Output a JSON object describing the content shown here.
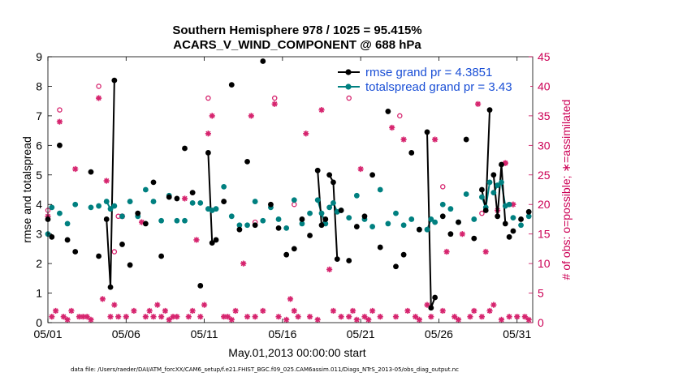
{
  "chart_data": {
    "type": "scatter",
    "title_line1": "Southern Hemisphere 978 / 1025 = 95.415%",
    "title_line2": "ACARS_V_WIND_COMPONENT @ 688 hPa",
    "xlabel": "May.01,2013 00:00:00 start",
    "ylabel_left": "rmse and totalspread",
    "ylabel_right": "# of obs: o=possible; ∗=assimilated",
    "xlim": [
      0,
      31
    ],
    "ylim_left": [
      0,
      9
    ],
    "ylim_right": [
      0,
      45
    ],
    "x_ticks": [
      0,
      5,
      10,
      15,
      20,
      25,
      30
    ],
    "x_tick_labels": [
      "05/01",
      "05/06",
      "05/11",
      "05/16",
      "05/21",
      "05/26",
      "05/31"
    ],
    "y_ticks_left": [
      0,
      1,
      2,
      3,
      4,
      5,
      6,
      7,
      8,
      9
    ],
    "y_tick_labels_left": [
      "0",
      "1",
      "2",
      "3",
      "4",
      "5",
      "6",
      "7",
      "8",
      "9"
    ],
    "y_ticks_right": [
      0,
      5,
      10,
      15,
      20,
      25,
      30,
      35,
      40,
      45
    ],
    "y_tick_labels_right": [
      "0",
      "5",
      "10",
      "15",
      "20",
      "25",
      "30",
      "35",
      "40",
      "45"
    ],
    "colors": {
      "rmse": "#000000",
      "spread": "#008080",
      "obs": "#d6246e",
      "legend_text": "#1a4fd6",
      "right_axis": "#cc0055"
    },
    "legend": [
      {
        "name": "rmse grand pr = 4.3851",
        "series": "rmse"
      },
      {
        "name": "totalspread grand pr = 3.43",
        "series": "spread"
      }
    ],
    "rmse_points": [
      [
        0.0,
        3.5
      ],
      [
        0.25,
        2.9
      ],
      [
        0.75,
        6.0
      ],
      [
        1.25,
        2.8
      ],
      [
        1.75,
        2.4
      ],
      [
        2.75,
        5.1
      ],
      [
        3.25,
        2.25
      ],
      [
        3.75,
        3.5
      ],
      [
        4.0,
        1.2
      ],
      [
        4.25,
        8.2
      ],
      [
        4.75,
        2.65
      ],
      [
        5.25,
        1.95
      ],
      [
        5.75,
        3.7
      ],
      [
        6.25,
        3.35
      ],
      [
        6.75,
        4.75
      ],
      [
        7.25,
        2.25
      ],
      [
        7.75,
        4.25
      ],
      [
        8.25,
        4.2
      ],
      [
        8.75,
        5.9
      ],
      [
        9.25,
        4.4
      ],
      [
        9.75,
        1.25
      ],
      [
        10.25,
        5.75
      ],
      [
        10.5,
        2.7
      ],
      [
        10.75,
        2.8
      ],
      [
        11.25,
        4.1
      ],
      [
        11.75,
        8.05
      ],
      [
        12.25,
        3.15
      ],
      [
        12.75,
        5.45
      ],
      [
        13.25,
        3.3
      ],
      [
        13.75,
        8.85
      ],
      [
        14.25,
        4.0
      ],
      [
        14.75,
        3.2
      ],
      [
        15.25,
        2.3
      ],
      [
        15.75,
        2.5
      ],
      [
        16.25,
        3.5
      ],
      [
        16.75,
        2.95
      ],
      [
        17.25,
        5.15
      ],
      [
        17.5,
        3.3
      ],
      [
        17.75,
        3.5
      ],
      [
        18.0,
        5.0
      ],
      [
        18.25,
        4.75
      ],
      [
        18.5,
        2.15
      ],
      [
        18.75,
        3.8
      ],
      [
        19.25,
        2.1
      ],
      [
        19.75,
        3.25
      ],
      [
        20.25,
        3.6
      ],
      [
        20.75,
        5.0
      ],
      [
        21.25,
        2.55
      ],
      [
        21.75,
        7.15
      ],
      [
        22.25,
        1.9
      ],
      [
        22.75,
        2.3
      ],
      [
        23.25,
        5.75
      ],
      [
        23.75,
        3.15
      ],
      [
        24.25,
        6.45
      ],
      [
        24.5,
        0.5
      ],
      [
        24.75,
        0.85
      ],
      [
        25.25,
        3.6
      ],
      [
        25.75,
        3.0
      ],
      [
        26.25,
        3.4
      ],
      [
        26.75,
        6.2
      ],
      [
        27.25,
        2.85
      ],
      [
        27.75,
        4.5
      ],
      [
        28.0,
        3.8
      ],
      [
        28.25,
        7.2
      ],
      [
        28.5,
        5.0
      ],
      [
        28.75,
        3.6
      ],
      [
        29.0,
        5.35
      ],
      [
        29.25,
        3.35
      ],
      [
        29.5,
        2.9
      ],
      [
        29.75,
        3.1
      ],
      [
        30.25,
        3.5
      ],
      [
        30.75,
        3.75
      ]
    ],
    "rmse_connected_groups": [
      [
        [
          3.75,
          3.5
        ],
        [
          4.0,
          1.2
        ],
        [
          4.25,
          8.2
        ]
      ],
      [
        [
          10.25,
          5.75
        ],
        [
          10.5,
          2.7
        ],
        [
          10.75,
          2.8
        ]
      ],
      [
        [
          17.25,
          5.15
        ],
        [
          17.5,
          3.3
        ],
        [
          17.75,
          3.5
        ]
      ],
      [
        [
          18.0,
          5.0
        ],
        [
          18.25,
          4.75
        ],
        [
          18.5,
          2.15
        ]
      ],
      [
        [
          24.25,
          6.45
        ],
        [
          24.5,
          0.5
        ],
        [
          24.75,
          0.85
        ]
      ],
      [
        [
          27.75,
          4.5
        ],
        [
          28.0,
          3.8
        ],
        [
          28.25,
          7.2
        ]
      ],
      [
        [
          28.5,
          5.0
        ],
        [
          28.75,
          3.6
        ],
        [
          29.0,
          5.35
        ],
        [
          29.25,
          3.35
        ]
      ]
    ],
    "spread_points": [
      [
        0.0,
        3.0
      ],
      [
        0.25,
        3.9
      ],
      [
        0.75,
        3.7
      ],
      [
        1.25,
        3.35
      ],
      [
        1.75,
        4.0
      ],
      [
        2.75,
        3.9
      ],
      [
        3.25,
        3.95
      ],
      [
        3.75,
        4.1
      ],
      [
        4.0,
        3.85
      ],
      [
        4.25,
        3.95
      ],
      [
        4.75,
        3.6
      ],
      [
        5.25,
        4.1
      ],
      [
        5.75,
        3.6
      ],
      [
        6.25,
        4.5
      ],
      [
        6.75,
        4.1
      ],
      [
        7.25,
        3.45
      ],
      [
        7.75,
        4.3
      ],
      [
        8.25,
        3.45
      ],
      [
        8.75,
        3.45
      ],
      [
        9.25,
        4.05
      ],
      [
        9.75,
        4.05
      ],
      [
        10.25,
        3.85
      ],
      [
        10.5,
        3.8
      ],
      [
        10.75,
        3.85
      ],
      [
        11.25,
        4.6
      ],
      [
        11.75,
        3.6
      ],
      [
        12.25,
        3.3
      ],
      [
        12.75,
        3.3
      ],
      [
        13.25,
        4.1
      ],
      [
        13.75,
        3.45
      ],
      [
        14.25,
        3.9
      ],
      [
        14.75,
        3.5
      ],
      [
        15.25,
        3.2
      ],
      [
        15.75,
        4.15
      ],
      [
        16.25,
        3.35
      ],
      [
        16.75,
        3.7
      ],
      [
        17.25,
        4.15
      ],
      [
        17.5,
        3.7
      ],
      [
        17.75,
        3.35
      ],
      [
        18.0,
        3.9
      ],
      [
        18.25,
        4.05
      ],
      [
        18.5,
        3.75
      ],
      [
        18.75,
        3.8
      ],
      [
        19.25,
        3.55
      ],
      [
        19.75,
        4.3
      ],
      [
        20.25,
        3.5
      ],
      [
        20.75,
        3.25
      ],
      [
        21.25,
        4.5
      ],
      [
        21.75,
        3.35
      ],
      [
        22.25,
        3.7
      ],
      [
        22.75,
        3.3
      ],
      [
        23.25,
        3.5
      ],
      [
        23.75,
        3.15
      ],
      [
        24.25,
        3.15
      ],
      [
        24.5,
        3.5
      ],
      [
        24.75,
        3.4
      ],
      [
        25.25,
        4.0
      ],
      [
        25.75,
        3.85
      ],
      [
        26.25,
        3.4
      ],
      [
        26.75,
        4.35
      ],
      [
        27.25,
        3.5
      ],
      [
        27.75,
        4.25
      ],
      [
        28.0,
        3.9
      ],
      [
        28.25,
        4.75
      ],
      [
        28.5,
        4.4
      ],
      [
        28.75,
        4.65
      ],
      [
        29.0,
        4.75
      ],
      [
        29.25,
        3.95
      ],
      [
        29.5,
        4.0
      ],
      [
        29.75,
        3.55
      ],
      [
        30.25,
        3.3
      ],
      [
        30.75,
        3.6
      ]
    ],
    "spread_connected_groups": [
      [
        [
          3.75,
          4.1
        ],
        [
          4.0,
          3.85
        ],
        [
          4.25,
          3.95
        ]
      ],
      [
        [
          10.25,
          3.85
        ],
        [
          10.5,
          3.8
        ],
        [
          10.75,
          3.85
        ]
      ],
      [
        [
          17.25,
          4.15
        ],
        [
          17.5,
          3.7
        ],
        [
          17.75,
          3.35
        ]
      ],
      [
        [
          18.0,
          3.9
        ],
        [
          18.25,
          4.05
        ],
        [
          18.5,
          3.75
        ]
      ],
      [
        [
          24.25,
          3.15
        ],
        [
          24.5,
          3.5
        ],
        [
          24.75,
          3.4
        ]
      ],
      [
        [
          27.75,
          4.25
        ],
        [
          28.0,
          3.9
        ],
        [
          28.25,
          4.75
        ]
      ],
      [
        [
          28.5,
          4.4
        ],
        [
          28.75,
          4.65
        ],
        [
          29.0,
          4.75
        ],
        [
          29.25,
          3.95
        ]
      ]
    ],
    "obs_possible": [
      [
        0.0,
        19.0
      ],
      [
        0.75,
        36.0
      ],
      [
        3.25,
        40.0
      ],
      [
        4.25,
        12.0
      ],
      [
        4.5,
        18.0
      ],
      [
        9.25,
        22.0
      ],
      [
        10.25,
        38.0
      ],
      [
        13.25,
        17.0
      ],
      [
        14.5,
        38.0
      ],
      [
        15.75,
        20.0
      ],
      [
        19.25,
        38.0
      ],
      [
        22.5,
        35.0
      ],
      [
        25.25,
        23.0
      ],
      [
        27.25,
        41.0
      ],
      [
        27.75,
        18.5
      ],
      [
        29.25,
        27.0
      ]
    ],
    "obs_assimilated": [
      [
        0.0,
        18.0
      ],
      [
        0.25,
        1.0
      ],
      [
        0.5,
        2.0
      ],
      [
        0.75,
        34.0
      ],
      [
        1.0,
        1.0
      ],
      [
        1.25,
        0.5
      ],
      [
        1.5,
        2.0
      ],
      [
        1.75,
        26.0
      ],
      [
        2.0,
        1.0
      ],
      [
        2.25,
        1.0
      ],
      [
        2.5,
        1.0
      ],
      [
        2.75,
        0.5
      ],
      [
        3.25,
        38.0
      ],
      [
        3.5,
        4.0
      ],
      [
        3.75,
        24.0
      ],
      [
        4.0,
        1.0
      ],
      [
        4.25,
        3.0
      ],
      [
        4.5,
        1.0
      ],
      [
        4.75,
        18.0
      ],
      [
        5.0,
        1.0
      ],
      [
        5.5,
        2.0
      ],
      [
        6.0,
        17.0
      ],
      [
        6.25,
        1.0
      ],
      [
        6.5,
        2.0
      ],
      [
        6.75,
        1.0
      ],
      [
        7.0,
        3.0
      ],
      [
        7.25,
        1.0
      ],
      [
        7.5,
        2.0
      ],
      [
        7.75,
        0.5
      ],
      [
        8.0,
        1.0
      ],
      [
        8.25,
        1.0
      ],
      [
        8.75,
        21.0
      ],
      [
        9.0,
        1.0
      ],
      [
        9.25,
        2.0
      ],
      [
        9.5,
        14.0
      ],
      [
        9.75,
        1.0
      ],
      [
        10.0,
        3.0
      ],
      [
        10.25,
        32.0
      ],
      [
        10.5,
        35.0
      ],
      [
        11.25,
        1.0
      ],
      [
        11.5,
        1.0
      ],
      [
        11.75,
        0.5
      ],
      [
        12.0,
        2.0
      ],
      [
        12.5,
        10.0
      ],
      [
        12.75,
        1.0
      ],
      [
        13.0,
        35.0
      ],
      [
        13.25,
        1.0
      ],
      [
        13.75,
        2.0
      ],
      [
        14.5,
        37.0
      ],
      [
        14.75,
        1.0
      ],
      [
        15.25,
        0.5
      ],
      [
        15.5,
        4.0
      ],
      [
        15.75,
        2.0
      ],
      [
        16.0,
        1.0
      ],
      [
        16.5,
        32.0
      ],
      [
        16.75,
        1.0
      ],
      [
        17.25,
        0.5
      ],
      [
        17.5,
        36.0
      ],
      [
        18.0,
        9.0
      ],
      [
        18.25,
        2.0
      ],
      [
        18.75,
        1.0
      ],
      [
        19.25,
        1.0
      ],
      [
        19.5,
        2.0
      ],
      [
        19.75,
        0.5
      ],
      [
        20.0,
        26.0
      ],
      [
        20.25,
        1.0
      ],
      [
        20.5,
        0.5
      ],
      [
        20.75,
        2.0
      ],
      [
        21.25,
        1.0
      ],
      [
        22.0,
        33.0
      ],
      [
        22.25,
        1.0
      ],
      [
        22.75,
        31.0
      ],
      [
        23.0,
        2.0
      ],
      [
        23.5,
        1.0
      ],
      [
        23.75,
        0.5
      ],
      [
        24.25,
        3.0
      ],
      [
        24.5,
        1.0
      ],
      [
        24.75,
        31.0
      ],
      [
        25.25,
        2.0
      ],
      [
        25.5,
        12.0
      ],
      [
        26.0,
        1.0
      ],
      [
        26.25,
        0.5
      ],
      [
        26.5,
        15.0
      ],
      [
        27.0,
        1.0
      ],
      [
        27.25,
        2.0
      ],
      [
        27.5,
        37.0
      ],
      [
        27.75,
        1.0
      ],
      [
        28.0,
        12.0
      ],
      [
        28.25,
        2.0
      ],
      [
        28.5,
        3.0
      ],
      [
        28.75,
        19.0
      ],
      [
        29.0,
        0.5
      ],
      [
        29.25,
        27.0
      ],
      [
        29.5,
        1.0
      ],
      [
        29.75,
        20.0
      ],
      [
        30.0,
        1.0
      ],
      [
        30.5,
        1.0
      ],
      [
        30.75,
        0.5
      ]
    ]
  },
  "footer_text": "data file: /Users/raeder/DAI/ATM_forcXX/CAM6_setup/f.e21.FHIST_BGC.f09_025.CAM6assim.011/Diags_NTrS_2013-05/obs_diag_output.nc"
}
